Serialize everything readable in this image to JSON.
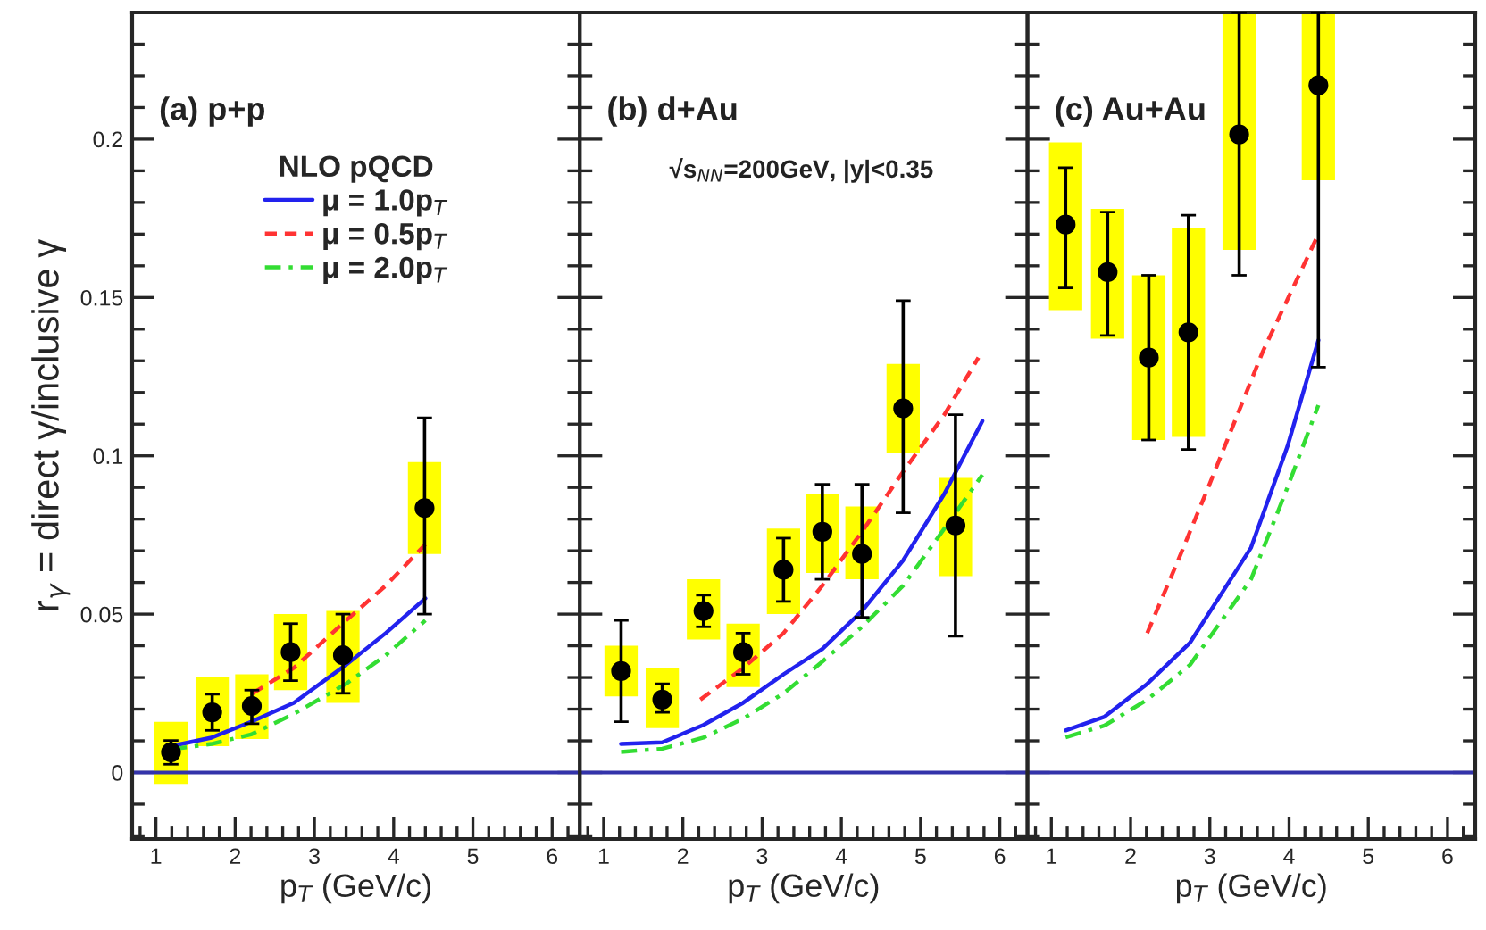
{
  "chart_data": [
    {
      "type": "scatter",
      "ylabel": "r$_{γ}$ = direct γ/inclusive γ",
      "xlabel": "p$_{T}$ (GeV/c)",
      "xlim": [
        0.7,
        6.35
      ],
      "xticks": [
        1,
        2,
        3,
        4,
        5,
        6
      ],
      "ylim": [
        -0.021,
        0.24
      ],
      "yticks": [
        0,
        0.05,
        0.1,
        0.15,
        0.2
      ],
      "grid": false,
      "legend": "top",
      "legend_title": "NLO pQCD",
      "annotations": [
        "(a) p+p"
      ],
      "ref_lines": [
        {
          "axis": "y",
          "value": 0,
          "color": "#3333aa"
        }
      ],
      "series": [
        {
          "type": "bar",
          "color": "#ffff00",
          "x": [
            1.19,
            1.71,
            2.21,
            2.7,
            3.36,
            4.39
          ],
          "base": [
            -0.0036,
            0.0083,
            0.0106,
            0.026,
            0.022,
            0.069
          ],
          "values": [
            0.0196,
            0.0217,
            0.0204,
            0.024,
            0.029,
            0.029
          ]
        },
        {
          "type": "line",
          "name": "μ = 1.0p$_{T}$",
          "color": "#2222ee",
          "line_style": "solid",
          "x": [
            1.19,
            1.7,
            2.2,
            2.74,
            3.4,
            3.9,
            4.4
          ],
          "values": [
            0.0083,
            0.011,
            0.016,
            0.022,
            0.034,
            0.044,
            0.055
          ]
        },
        {
          "type": "line",
          "name": "μ = 0.5p$_{T}$",
          "color": "#ff3333",
          "line_style": "dashed",
          "x": [
            2.22,
            2.74,
            3.4,
            3.9,
            4.4
          ],
          "values": [
            0.025,
            0.033,
            0.048,
            0.059,
            0.072
          ]
        },
        {
          "type": "line",
          "name": "μ = 2.0p$_{T}$",
          "color": "#33dd33",
          "line_style": "dashdot",
          "x": [
            1.19,
            1.7,
            2.2,
            2.74,
            3.4,
            3.9,
            4.4
          ],
          "values": [
            0.0073,
            0.009,
            0.012,
            0.0185,
            0.028,
            0.037,
            0.048
          ]
        },
        {
          "color": "#000000",
          "marker": "circle",
          "x": [
            1.19,
            1.71,
            2.21,
            2.7,
            3.36,
            4.39
          ],
          "values": [
            0.0064,
            0.019,
            0.021,
            0.038,
            0.037,
            0.0835
          ],
          "errors": [
            [
              0.0026,
              0.0101
            ],
            [
              0.0133,
              0.0247
            ],
            [
              0.0154,
              0.026
            ],
            [
              0.029,
              0.047
            ],
            [
              0.025,
              0.05
            ],
            [
              0.05,
              0.112
            ]
          ]
        }
      ]
    },
    {
      "type": "scatter",
      "xlabel": "p$_{T}$ (GeV/c)",
      "xlim": [
        0.7,
        6.35
      ],
      "xticks": [
        1,
        2,
        3,
        4,
        5,
        6
      ],
      "ylim": [
        -0.021,
        0.24
      ],
      "yticks": [
        0,
        0.05,
        0.1,
        0.15,
        0.2
      ],
      "grid": false,
      "tick_labels": "x",
      "annotations": [
        "(b) d+Au",
        "√s$_{NN}$=200GeV, |y|<0.35"
      ],
      "ref_lines": [
        {
          "axis": "y",
          "value": 0,
          "color": "#3333aa"
        }
      ],
      "series": [
        {
          "type": "bar",
          "color": "#ffff00",
          "x": [
            1.22,
            1.74,
            2.26,
            2.76,
            3.27,
            3.76,
            4.26,
            4.78,
            5.44
          ],
          "base": [
            0.024,
            0.014,
            0.042,
            0.027,
            0.05,
            0.063,
            0.061,
            0.101,
            0.062
          ],
          "values": [
            0.016,
            0.019,
            0.019,
            0.02,
            0.027,
            0.025,
            0.023,
            0.028,
            0.031
          ]
        },
        {
          "type": "line",
          "color": "#2222ee",
          "line_style": "solid",
          "x": [
            1.22,
            1.74,
            2.26,
            2.76,
            3.27,
            3.76,
            4.26,
            4.78,
            5.3,
            5.78
          ],
          "values": [
            0.009,
            0.0095,
            0.015,
            0.022,
            0.031,
            0.039,
            0.051,
            0.067,
            0.088,
            0.111
          ]
        },
        {
          "type": "line",
          "color": "#ff3333",
          "line_style": "dashed",
          "x": [
            2.22,
            2.76,
            3.27,
            3.76,
            4.26,
            4.78,
            5.3,
            5.73
          ],
          "values": [
            0.023,
            0.033,
            0.044,
            0.059,
            0.076,
            0.095,
            0.113,
            0.131
          ]
        },
        {
          "type": "line",
          "color": "#33dd33",
          "line_style": "dashdot",
          "x": [
            1.22,
            1.74,
            2.26,
            2.76,
            3.27,
            3.76,
            4.26,
            4.78,
            5.3,
            5.78
          ],
          "values": [
            0.0065,
            0.0075,
            0.011,
            0.017,
            0.025,
            0.035,
            0.046,
            0.059,
            0.077,
            0.094
          ]
        },
        {
          "color": "#000000",
          "marker": "circle",
          "x": [
            1.22,
            1.74,
            2.26,
            2.76,
            3.27,
            3.76,
            4.26,
            4.78,
            5.44
          ],
          "values": [
            0.032,
            0.023,
            0.051,
            0.038,
            0.064,
            0.076,
            0.069,
            0.115,
            0.078
          ],
          "errors": [
            [
              0.016,
              0.048
            ],
            [
              0.019,
              0.028
            ],
            [
              0.046,
              0.056
            ],
            [
              0.031,
              0.044
            ],
            [
              0.054,
              0.074
            ],
            [
              0.061,
              0.091
            ],
            [
              0.049,
              0.091
            ],
            [
              0.082,
              0.149
            ],
            [
              0.043,
              0.113
            ]
          ]
        }
      ]
    },
    {
      "type": "scatter",
      "xlabel": "p$_{T}$ (GeV/c)",
      "xlim": [
        0.7,
        6.35
      ],
      "xticks": [
        1,
        2,
        3,
        4,
        5,
        6
      ],
      "ylim": [
        -0.021,
        0.24
      ],
      "yticks": [
        0,
        0.05,
        0.1,
        0.15,
        0.2
      ],
      "grid": false,
      "tick_labels": "x",
      "annotations": [
        "(c) Au+Au"
      ],
      "ref_lines": [
        {
          "axis": "y",
          "value": 0,
          "color": "#3333aa"
        }
      ],
      "series": [
        {
          "type": "bar",
          "color": "#ffff00",
          "x": [
            1.18,
            1.71,
            2.23,
            2.73,
            3.37,
            4.37
          ],
          "base": [
            0.146,
            0.137,
            0.105,
            0.106,
            0.165,
            0.187
          ],
          "values": [
            0.053,
            0.041,
            0.052,
            0.066,
            0.075,
            0.053
          ]
        },
        {
          "type": "line",
          "color": "#2222ee",
          "line_style": "solid",
          "x": [
            1.18,
            1.67,
            2.21,
            2.75,
            3.52,
            3.98,
            4.37
          ],
          "values": [
            0.0133,
            0.0176,
            0.028,
            0.041,
            0.071,
            0.103,
            0.1365
          ]
        },
        {
          "type": "line",
          "color": "#ff3333",
          "line_style": "dashed",
          "x": [
            2.21,
            2.6,
            2.98,
            3.67,
            4.37
          ],
          "values": [
            0.044,
            0.067,
            0.09,
            0.133,
            0.17
          ]
        },
        {
          "type": "line",
          "color": "#33dd33",
          "line_style": "dashdot",
          "x": [
            1.18,
            1.67,
            2.21,
            2.75,
            3.52,
            3.98,
            4.37
          ],
          "values": [
            0.0111,
            0.0148,
            0.023,
            0.034,
            0.061,
            0.09,
            0.116
          ]
        },
        {
          "color": "#000000",
          "marker": "circle",
          "x": [
            1.18,
            1.71,
            2.23,
            2.73,
            3.37,
            4.37
          ],
          "values": [
            0.173,
            0.158,
            0.131,
            0.139,
            0.2015,
            0.217
          ],
          "errors": [
            [
              0.153,
              0.191
            ],
            [
              0.138,
              0.177
            ],
            [
              0.105,
              0.157
            ],
            [
              0.102,
              0.176
            ],
            [
              0.157,
              0.24
            ],
            [
              0.128,
              0.24
            ]
          ]
        }
      ]
    }
  ]
}
